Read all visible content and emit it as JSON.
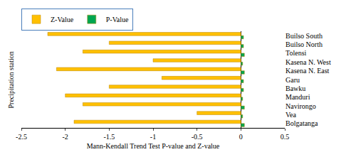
{
  "chart_data": {
    "type": "bar",
    "orientation": "horizontal",
    "x_label": "Mann-Kendall Trend Test P-value and Z-value",
    "y_label": "Precipitation station",
    "categories": [
      "Builso South",
      "Builso North",
      "Tolensi",
      "Kasena N. West",
      "Kasena N. East",
      "Garu",
      "Bawku",
      "Manduri",
      "Navirongo",
      "Vea",
      "Bolgatanga"
    ],
    "series": [
      {
        "name": "Z-Value",
        "color": "#FFC000",
        "values": [
          -2.2,
          -1.5,
          -1.8,
          -1.0,
          -2.1,
          -0.9,
          -1.5,
          -2.0,
          -1.8,
          -0.5,
          -1.9
        ]
      },
      {
        "name": "P-Value",
        "color": "#00A650",
        "values": [
          0.03,
          0.03,
          0.04,
          0.02,
          0.04,
          0.03,
          0.03,
          0.02,
          0.04,
          0.02,
          0.04
        ]
      }
    ],
    "xlim": [
      -2.5,
      0.5
    ],
    "xticks": [
      -2.5,
      -2,
      -1.5,
      -1,
      -0.5,
      0,
      0.5
    ],
    "grid": false,
    "legend": "top left"
  }
}
